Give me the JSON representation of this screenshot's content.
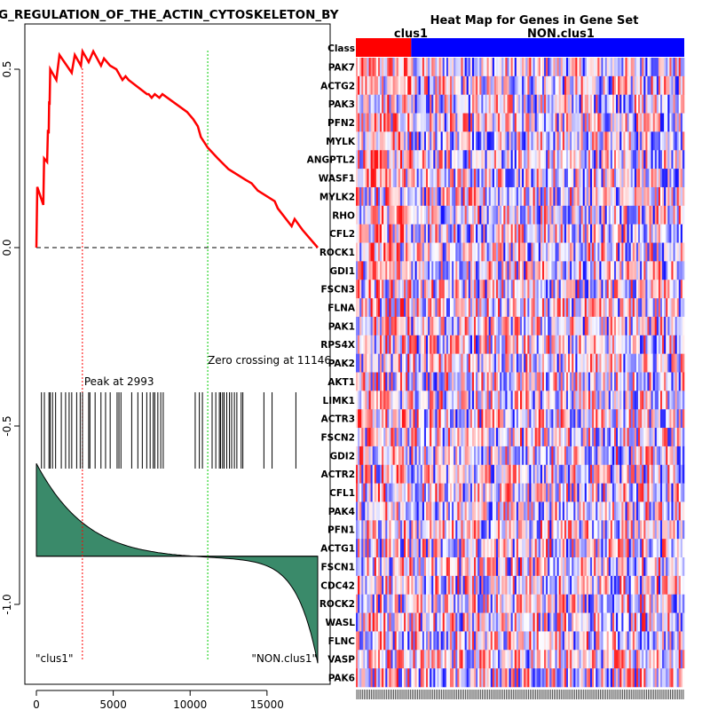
{
  "chart_data": [
    {
      "type": "line",
      "title": "G_REGULATION_OF_THE_ACTIN_CYTOSKELETON_BY",
      "xlim": [
        0,
        18500
      ],
      "ylim": [
        -1.15,
        0.58
      ],
      "xticks": [
        0,
        5000,
        10000,
        15000
      ],
      "yticks": [
        0.5,
        0.0,
        -0.5,
        -1.0
      ],
      "xtick_labels": [
        "0",
        "5000",
        "10000",
        "15000"
      ],
      "ytick_labels": [
        "0.5",
        "0.0",
        "-0.5",
        "-1.0"
      ],
      "series": [
        {
          "name": "running enrichment score",
          "color": "#ff0000",
          "points": [
            [
              0,
              0
            ],
            [
              60,
              0.17
            ],
            [
              450,
              0.12
            ],
            [
              500,
              0.25
            ],
            [
              700,
              0.24
            ],
            [
              750,
              0.33
            ],
            [
              800,
              0.32
            ],
            [
              830,
              0.41
            ],
            [
              860,
              0.4
            ],
            [
              900,
              0.5
            ],
            [
              1300,
              0.47
            ],
            [
              1500,
              0.54
            ],
            [
              2300,
              0.49
            ],
            [
              2500,
              0.54
            ],
            [
              2900,
              0.51
            ],
            [
              3000,
              0.55
            ],
            [
              3400,
              0.52
            ],
            [
              3700,
              0.55
            ],
            [
              4200,
              0.51
            ],
            [
              4400,
              0.53
            ],
            [
              4800,
              0.51
            ],
            [
              5200,
              0.5
            ],
            [
              5600,
              0.47
            ],
            [
              5800,
              0.48
            ],
            [
              6000,
              0.47
            ],
            [
              7200,
              0.43
            ],
            [
              7300,
              0.43
            ],
            [
              7500,
              0.42
            ],
            [
              7700,
              0.43
            ],
            [
              8000,
              0.42
            ],
            [
              8200,
              0.43
            ],
            [
              9800,
              0.38
            ],
            [
              10200,
              0.36
            ],
            [
              10500,
              0.34
            ],
            [
              10700,
              0.31
            ],
            [
              11146,
              0.28
            ],
            [
              11800,
              0.25
            ],
            [
              12500,
              0.22
            ],
            [
              13600,
              0.19
            ],
            [
              14000,
              0.18
            ],
            [
              14400,
              0.16
            ],
            [
              15500,
              0.13
            ],
            [
              15700,
              0.11
            ],
            [
              16600,
              0.06
            ],
            [
              16800,
              0.08
            ],
            [
              17300,
              0.05
            ],
            [
              18300,
              0
            ]
          ]
        }
      ],
      "gene_hits_x": [
        330,
        520,
        820,
        900,
        1050,
        1250,
        1620,
        1900,
        2130,
        2300,
        2620,
        2850,
        3000,
        3400,
        3480,
        3820,
        4200,
        4500,
        4800,
        5250,
        5370,
        5500,
        6200,
        6600,
        6890,
        7180,
        7400,
        7600,
        7700,
        7900,
        8090,
        8250,
        10330,
        10600,
        10800,
        11430,
        11670,
        11900,
        11980,
        12110,
        12210,
        12380,
        12560,
        12700,
        12880,
        13040,
        13320,
        13430,
        14800,
        15330,
        16880
      ],
      "ranked_metric": {
        "color": "#3a8a6a",
        "baseline": -0.865,
        "start": -0.62,
        "end": -1.15
      },
      "annotations": [
        {
          "text": "Peak at 2993",
          "x": 2993,
          "line_color": "#ff0000"
        },
        {
          "text": "Zero crossing at 11146",
          "x": 11146,
          "line_color": "#00cc00"
        }
      ],
      "corner_labels": [
        "\"clus1\"",
        "\"NON.clus1\""
      ]
    },
    {
      "type": "heatmap",
      "title": "Heat Map for Genes in Gene Set",
      "class_row_label": "Class",
      "groups": [
        {
          "name": "clus1",
          "color": "#ff0000",
          "columns": 30
        },
        {
          "name": "NON.clus1",
          "color": "#0000ff",
          "columns": 148
        }
      ],
      "genes": [
        "PAK7",
        "ACTG2",
        "PAK3",
        "PFN2",
        "MYLK",
        "ANGPTL2",
        "WASF1",
        "MYLK2",
        "RHO",
        "CFL2",
        "ROCK1",
        "GDI1",
        "FSCN3",
        "FLNA",
        "PAK1",
        "RPS4X",
        "PAK2",
        "AKT1",
        "LIMK1",
        "ACTR3",
        "FSCN2",
        "GDI2",
        "ACTR2",
        "CFL1",
        "PAK4",
        "PFN1",
        "ACTG1",
        "FSCN1",
        "CDC42",
        "ROCK2",
        "WASL",
        "FLNC",
        "VASP",
        "PAK6"
      ],
      "color_scale": [
        "#0000ff",
        "#ffffff",
        "#ff0000"
      ]
    }
  ]
}
